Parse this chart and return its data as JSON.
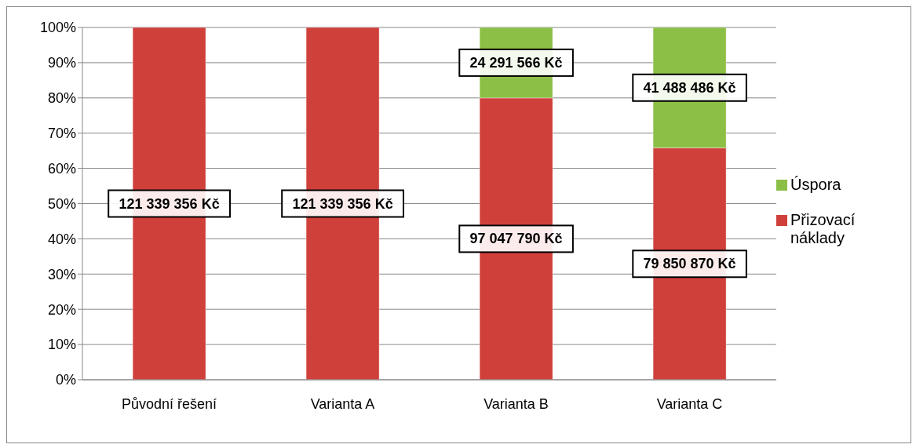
{
  "chart_data": {
    "type": "bar",
    "stacked": true,
    "categories": [
      "Původní řešení",
      "Varianta A",
      "Varianta B",
      "Varianta C"
    ],
    "series": [
      {
        "name": "Přizovací náklady",
        "color": "#d0403b",
        "values": [
          100,
          100,
          80,
          65.8
        ]
      },
      {
        "name": "Úspora",
        "color": "#8cbf45",
        "values": [
          0,
          0,
          20,
          34.2
        ]
      }
    ],
    "annotations": [
      "121 339 356 Kč",
      "121 339 356 Kč",
      "97 047 790 Kč",
      "79 850 870 Kč",
      "24 291 566 Kč",
      "41 488 486 Kč"
    ],
    "ylim": [
      0,
      100
    ],
    "yticks": [
      {
        "value": 0,
        "label": "0%"
      },
      {
        "value": 10,
        "label": "10%"
      },
      {
        "value": 20,
        "label": "20%"
      },
      {
        "value": 30,
        "label": "30%"
      },
      {
        "value": 40,
        "label": "40%"
      },
      {
        "value": 50,
        "label": "50%"
      },
      {
        "value": 60,
        "label": "60%"
      },
      {
        "value": 70,
        "label": "70%"
      },
      {
        "value": 80,
        "label": "80%"
      },
      {
        "value": 90,
        "label": "90%"
      },
      {
        "value": 100,
        "label": "100%"
      }
    ],
    "grid": "y",
    "legend": "right"
  }
}
